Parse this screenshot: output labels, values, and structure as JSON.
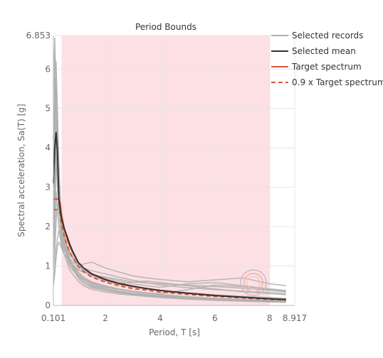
{
  "chart_data": {
    "type": "line",
    "title": "Period Bounds",
    "xlabel": "Period, T [s]",
    "ylabel": "Spectral acceleration, Sa(T) [g]",
    "xlim": [
      0.101,
      8.917
    ],
    "ylim": [
      0,
      6.853
    ],
    "x_ticks": [
      "0.101",
      "2",
      "4",
      "6",
      "8",
      "8.917"
    ],
    "x_tick_values": [
      0.101,
      2,
      4,
      6,
      8,
      8.917
    ],
    "y_ticks": [
      "0",
      "1",
      "2",
      "3",
      "4",
      "5",
      "6",
      "6.853"
    ],
    "y_tick_values": [
      0,
      1,
      2,
      3,
      4,
      5,
      6,
      6.853
    ],
    "grid": true,
    "legend_position": "top-right",
    "period_bounds": [
      0.4,
      8.0
    ],
    "period_bounds_color": "#fde0e3",
    "legend": [
      {
        "label": "Selected records",
        "color": "#b0b0b0",
        "dash": "solid"
      },
      {
        "label": "Selected mean",
        "color": "#333333",
        "dash": "solid"
      },
      {
        "label": "Target spectrum",
        "color": "#d9573b",
        "dash": "solid"
      },
      {
        "label": "0.9 x Target spectrum",
        "color": "#d9573b",
        "dash": "dashed"
      }
    ],
    "x": [
      0.1,
      0.15,
      0.2,
      0.25,
      0.3,
      0.35,
      0.4,
      0.5,
      0.6,
      0.7,
      0.8,
      1.0,
      1.2,
      1.5,
      2.0,
      2.5,
      3.0,
      3.5,
      4.0,
      5.0,
      6.0,
      7.0,
      8.0,
      8.6
    ],
    "series": [
      {
        "name": "Target spectrum",
        "color": "#d9573b",
        "dash": "solid",
        "values": [
          2.7,
          2.7,
          2.7,
          2.7,
          2.68,
          2.6,
          2.3,
          1.95,
          1.7,
          1.5,
          1.35,
          1.1,
          0.95,
          0.8,
          0.65,
          0.55,
          0.48,
          0.43,
          0.38,
          0.31,
          0.25,
          0.21,
          0.17,
          0.15
        ]
      },
      {
        "name": "0.9 x Target spectrum",
        "color": "#d9573b",
        "dash": "dashed",
        "values": [
          2.43,
          2.43,
          2.43,
          2.43,
          2.41,
          2.34,
          2.07,
          1.76,
          1.53,
          1.35,
          1.22,
          0.99,
          0.86,
          0.72,
          0.59,
          0.5,
          0.43,
          0.39,
          0.34,
          0.28,
          0.23,
          0.19,
          0.15,
          0.14
        ]
      },
      {
        "name": "Selected mean",
        "color": "#333333",
        "dash": "solid",
        "values": [
          3.1,
          4.0,
          4.4,
          3.9,
          2.7,
          2.4,
          2.2,
          1.95,
          1.75,
          1.55,
          1.38,
          1.1,
          0.95,
          0.8,
          0.66,
          0.56,
          0.49,
          0.43,
          0.38,
          0.31,
          0.25,
          0.21,
          0.17,
          0.15
        ]
      }
    ],
    "records": [
      [
        2.0,
        3.2,
        4.5,
        3.8,
        2.9,
        2.2,
        1.8,
        1.5,
        1.2,
        1.0,
        0.9,
        0.75,
        0.6,
        0.5,
        0.42,
        0.35,
        0.3,
        0.27,
        0.24,
        0.18,
        0.15,
        0.12,
        0.1,
        0.09
      ],
      [
        5.5,
        6.8,
        5.2,
        4.1,
        3.2,
        2.6,
        2.1,
        1.7,
        1.4,
        1.1,
        0.95,
        0.7,
        0.55,
        0.45,
        0.38,
        0.32,
        0.28,
        0.24,
        0.21,
        0.16,
        0.13,
        0.11,
        0.09,
        0.08
      ],
      [
        1.2,
        1.8,
        2.9,
        2.4,
        2.0,
        1.7,
        1.5,
        1.3,
        1.2,
        1.1,
        1.0,
        0.9,
        0.85,
        0.8,
        0.7,
        0.62,
        0.55,
        0.5,
        0.46,
        0.55,
        0.58,
        0.5,
        0.42,
        0.38
      ],
      [
        3.0,
        4.8,
        6.2,
        5.0,
        3.6,
        2.8,
        2.2,
        1.8,
        1.5,
        1.2,
        1.05,
        0.85,
        0.7,
        0.58,
        0.48,
        0.4,
        0.35,
        0.31,
        0.28,
        0.22,
        0.18,
        0.15,
        0.13,
        0.12
      ],
      [
        0.6,
        0.9,
        1.4,
        1.7,
        1.9,
        1.8,
        1.6,
        1.4,
        1.3,
        1.2,
        1.1,
        1.0,
        1.05,
        1.1,
        0.95,
        0.85,
        0.75,
        0.7,
        0.66,
        0.6,
        0.65,
        0.7,
        0.55,
        0.5
      ],
      [
        4.2,
        5.8,
        4.9,
        3.5,
        2.6,
        2.0,
        1.6,
        1.3,
        1.1,
        0.9,
        0.8,
        0.62,
        0.5,
        0.41,
        0.34,
        0.29,
        0.26,
        0.23,
        0.2,
        0.16,
        0.13,
        0.11,
        0.09,
        0.08
      ],
      [
        1.5,
        2.2,
        3.4,
        4.0,
        3.1,
        2.5,
        2.0,
        1.7,
        1.5,
        1.35,
        1.25,
        1.05,
        0.9,
        0.78,
        0.65,
        0.55,
        0.6,
        0.62,
        0.58,
        0.5,
        0.42,
        0.35,
        0.3,
        0.27
      ],
      [
        2.5,
        3.9,
        5.6,
        4.4,
        3.0,
        2.3,
        1.9,
        1.55,
        1.3,
        1.1,
        0.98,
        0.8,
        0.66,
        0.56,
        0.46,
        0.4,
        0.36,
        0.32,
        0.3,
        0.4,
        0.52,
        0.48,
        0.4,
        0.36
      ],
      [
        0.9,
        1.3,
        2.1,
        2.6,
        2.4,
        2.1,
        1.85,
        1.6,
        1.45,
        1.3,
        1.2,
        1.0,
        0.88,
        0.75,
        0.62,
        0.53,
        0.47,
        0.42,
        0.38,
        0.32,
        0.27,
        0.23,
        0.2,
        0.18
      ],
      [
        3.6,
        5.1,
        4.0,
        3.0,
        2.4,
        2.0,
        1.7,
        1.45,
        1.25,
        1.08,
        0.96,
        0.78,
        0.65,
        0.53,
        0.43,
        0.36,
        0.31,
        0.28,
        0.25,
        0.2,
        0.17,
        0.14,
        0.12,
        0.11
      ],
      [
        1.8,
        2.6,
        3.8,
        3.3,
        2.7,
        2.3,
        2.0,
        1.7,
        1.5,
        1.35,
        1.2,
        1.05,
        0.95,
        0.88,
        0.8,
        0.72,
        0.64,
        0.58,
        0.52,
        0.45,
        0.4,
        0.36,
        0.33,
        0.3
      ],
      [
        0.5,
        0.8,
        1.2,
        1.5,
        1.6,
        1.55,
        1.45,
        1.3,
        1.2,
        1.1,
        1.0,
        0.85,
        0.72,
        0.6,
        0.5,
        0.42,
        0.36,
        0.32,
        0.28,
        0.22,
        0.18,
        0.15,
        0.12,
        0.11
      ],
      [
        4.8,
        6.4,
        5.5,
        4.2,
        3.1,
        2.4,
        1.95,
        1.55,
        1.3,
        1.1,
        0.95,
        0.75,
        0.6,
        0.48,
        0.39,
        0.33,
        0.29,
        0.26,
        0.23,
        0.19,
        0.16,
        0.13,
        0.11,
        0.1
      ],
      [
        2.2,
        3.0,
        4.2,
        3.6,
        2.8,
        2.2,
        1.8,
        1.5,
        1.3,
        1.15,
        1.05,
        0.92,
        0.84,
        0.78,
        0.72,
        0.66,
        0.6,
        0.57,
        0.55,
        0.52,
        0.48,
        0.44,
        0.38,
        0.34
      ]
    ]
  }
}
